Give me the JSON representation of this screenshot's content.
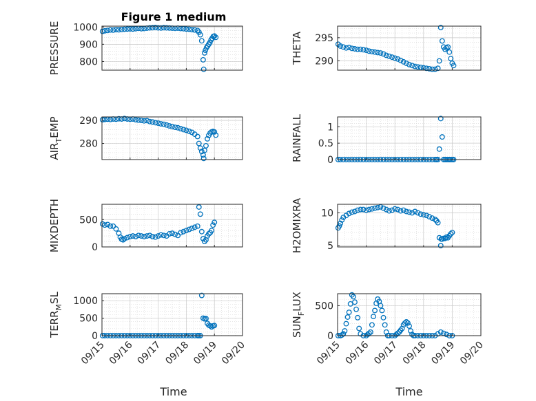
{
  "window": {
    "title": "Figure 1 medium"
  },
  "chart_data": [
    {
      "type": "scatter",
      "ylabel": "PRESSURE",
      "ylim": [
        750,
        1005
      ],
      "yticks": [
        800,
        900,
        1000
      ],
      "xlim": [
        0,
        5
      ],
      "xticks": [
        "09/15",
        "09/16",
        "09/17",
        "09/18",
        "09/19",
        "09/20"
      ],
      "series": [
        {
          "color": "#0072BD",
          "x": [
            0.02,
            0.1,
            0.2,
            0.3,
            0.4,
            0.5,
            0.6,
            0.7,
            0.8,
            0.9,
            1.0,
            1.1,
            1.2,
            1.3,
            1.4,
            1.5,
            1.6,
            1.7,
            1.8,
            1.9,
            2.0,
            2.1,
            2.2,
            2.3,
            2.4,
            2.5,
            2.6,
            2.7,
            2.8,
            2.9,
            3.0,
            3.1,
            3.2,
            3.3,
            3.4,
            3.45,
            3.5,
            3.55,
            3.6,
            3.62,
            3.65,
            3.68,
            3.72,
            3.76,
            3.8,
            3.84,
            3.88,
            3.92,
            3.96,
            4.0,
            4.05
          ],
          "y": [
            975,
            978,
            980,
            983,
            982,
            985,
            984,
            986,
            987,
            988,
            989,
            988,
            990,
            992,
            990,
            991,
            993,
            995,
            996,
            997,
            995,
            994,
            996,
            995,
            994,
            993,
            992,
            993,
            991,
            990,
            988,
            987,
            985,
            983,
            980,
            970,
            955,
            920,
            810,
            755,
            850,
            865,
            880,
            890,
            900,
            910,
            925,
            935,
            945,
            948,
            940
          ]
        }
      ],
      "grid": true
    },
    {
      "type": "scatter",
      "ylabel": "THETA",
      "ylim": [
        288,
        297.5
      ],
      "yticks": [
        290,
        295
      ],
      "xlim": [
        0,
        5
      ],
      "xticks": [
        "09/15",
        "09/16",
        "09/17",
        "09/18",
        "09/19",
        "09/20"
      ],
      "series": [
        {
          "color": "#0072BD",
          "x": [
            0.02,
            0.1,
            0.2,
            0.3,
            0.4,
            0.5,
            0.6,
            0.7,
            0.8,
            0.9,
            1.0,
            1.1,
            1.2,
            1.3,
            1.4,
            1.5,
            1.6,
            1.7,
            1.8,
            1.9,
            2.0,
            2.1,
            2.2,
            2.3,
            2.4,
            2.5,
            2.6,
            2.7,
            2.8,
            2.9,
            3.0,
            3.1,
            3.2,
            3.3,
            3.4,
            3.5,
            3.55,
            3.6,
            3.65,
            3.7,
            3.75,
            3.8,
            3.85,
            3.9,
            3.95,
            4.0,
            4.05
          ],
          "y": [
            293.6,
            293.2,
            293.0,
            292.8,
            292.9,
            292.7,
            292.6,
            292.5,
            292.5,
            292.4,
            292.3,
            292.1,
            292.0,
            291.9,
            291.8,
            291.7,
            291.5,
            291.2,
            291.0,
            290.8,
            290.6,
            290.4,
            290.1,
            289.8,
            289.5,
            289.2,
            289.0,
            288.8,
            288.7,
            288.6,
            288.5,
            288.4,
            288.3,
            288.2,
            288.2,
            288.4,
            290.0,
            297.2,
            294.3,
            293.0,
            292.5,
            292.8,
            293.0,
            291.9,
            290.5,
            289.5,
            289.0
          ]
        }
      ],
      "grid": true
    },
    {
      "type": "scatter",
      "ylabel": "AIR_TEMP",
      "ylim": [
        273,
        291.5
      ],
      "yticks": [
        280,
        290
      ],
      "xlim": [
        0,
        5
      ],
      "xticks": [
        "09/15",
        "09/16",
        "09/17",
        "09/18",
        "09/19",
        "09/20"
      ],
      "series": [
        {
          "color": "#0072BD",
          "x": [
            0.02,
            0.1,
            0.2,
            0.3,
            0.4,
            0.5,
            0.6,
            0.7,
            0.8,
            0.9,
            1.0,
            1.1,
            1.2,
            1.3,
            1.4,
            1.5,
            1.6,
            1.7,
            1.8,
            1.9,
            2.0,
            2.1,
            2.2,
            2.3,
            2.4,
            2.5,
            2.6,
            2.7,
            2.8,
            2.9,
            3.0,
            3.1,
            3.2,
            3.3,
            3.4,
            3.45,
            3.5,
            3.55,
            3.6,
            3.62,
            3.65,
            3.7,
            3.75,
            3.8,
            3.85,
            3.9,
            3.95,
            4.0,
            4.05
          ],
          "y": [
            290.3,
            290.4,
            290.5,
            290.4,
            290.6,
            290.5,
            290.7,
            290.6,
            290.8,
            290.6,
            290.5,
            290.6,
            290.3,
            290.1,
            290.0,
            289.8,
            289.9,
            289.5,
            289.3,
            289.0,
            288.8,
            288.5,
            288.3,
            288.0,
            287.6,
            287.3,
            287.0,
            286.8,
            286.4,
            286.0,
            285.7,
            285.3,
            284.8,
            284.0,
            283.0,
            280.0,
            278.0,
            276.5,
            275.0,
            273.5,
            277.0,
            279.0,
            282.0,
            283.5,
            284.5,
            285.0,
            285.2,
            285.0,
            283.6
          ]
        }
      ],
      "grid": true
    },
    {
      "type": "scatter",
      "ylabel": "RAINFALL",
      "ylim": [
        0,
        1.3
      ],
      "yticks": [
        0,
        0.5,
        1
      ],
      "xlim": [
        0,
        5
      ],
      "xticks": [
        "09/15",
        "09/16",
        "09/17",
        "09/18",
        "09/19",
        "09/20"
      ],
      "series": [
        {
          "color": "#0072BD",
          "x": [
            0.02,
            0.1,
            0.2,
            0.3,
            0.4,
            0.5,
            0.6,
            0.7,
            0.8,
            0.9,
            1.0,
            1.1,
            1.2,
            1.3,
            1.4,
            1.5,
            1.6,
            1.7,
            1.8,
            1.9,
            2.0,
            2.1,
            2.2,
            2.3,
            2.4,
            2.5,
            2.6,
            2.7,
            2.8,
            2.9,
            3.0,
            3.1,
            3.2,
            3.3,
            3.4,
            3.45,
            3.5,
            3.55,
            3.6,
            3.65,
            3.7,
            3.75,
            3.8,
            3.85,
            3.9,
            3.95,
            4.0,
            4.05
          ],
          "y": [
            0,
            0,
            0,
            0,
            0,
            0,
            0,
            0,
            0,
            0,
            0,
            0,
            0,
            0,
            0,
            0,
            0,
            0,
            0,
            0,
            0,
            0,
            0,
            0,
            0,
            0,
            0,
            0,
            0,
            0,
            0,
            0,
            0,
            0,
            0,
            0,
            0,
            0.32,
            1.25,
            0.69,
            0,
            0,
            0,
            0,
            0,
            0,
            0,
            0
          ]
        }
      ],
      "grid": true
    },
    {
      "type": "scatter",
      "ylabel": "MIXDEPTH",
      "ylim": [
        0,
        780
      ],
      "yticks": [
        0,
        500
      ],
      "xlim": [
        0,
        5
      ],
      "xticks": [
        "09/15",
        "09/16",
        "09/17",
        "09/18",
        "09/19",
        "09/20"
      ],
      "series": [
        {
          "color": "#0072BD",
          "x": [
            0.02,
            0.1,
            0.2,
            0.3,
            0.4,
            0.5,
            0.6,
            0.65,
            0.7,
            0.75,
            0.8,
            0.9,
            1.0,
            1.1,
            1.2,
            1.3,
            1.4,
            1.5,
            1.6,
            1.7,
            1.8,
            1.9,
            2.0,
            2.1,
            2.2,
            2.3,
            2.4,
            2.5,
            2.6,
            2.7,
            2.8,
            2.9,
            3.0,
            3.1,
            3.2,
            3.3,
            3.4,
            3.45,
            3.5,
            3.55,
            3.6,
            3.65,
            3.7,
            3.75,
            3.8,
            3.85,
            3.9,
            3.95,
            4.0
          ],
          "y": [
            420,
            400,
            410,
            380,
            380,
            330,
            250,
            180,
            140,
            130,
            150,
            170,
            190,
            200,
            190,
            210,
            200,
            190,
            200,
            210,
            190,
            180,
            200,
            220,
            210,
            200,
            240,
            250,
            230,
            210,
            260,
            280,
            300,
            320,
            340,
            360,
            380,
            730,
            600,
            280,
            150,
            100,
            130,
            200,
            240,
            260,
            300,
            400,
            450
          ]
        }
      ],
      "grid": true
    },
    {
      "type": "scatter",
      "ylabel": "H2OMIXRA",
      "ylim": [
        4.8,
        11.3
      ],
      "yticks": [
        5,
        10
      ],
      "xlim": [
        0,
        5
      ],
      "xticks": [
        "09/15",
        "09/16",
        "09/17",
        "09/18",
        "09/19",
        "09/20"
      ],
      "series": [
        {
          "color": "#0072BD",
          "x": [
            0.02,
            0.06,
            0.1,
            0.15,
            0.2,
            0.3,
            0.4,
            0.5,
            0.6,
            0.7,
            0.8,
            0.9,
            1.0,
            1.1,
            1.2,
            1.3,
            1.4,
            1.5,
            1.6,
            1.7,
            1.8,
            1.9,
            2.0,
            2.1,
            2.2,
            2.3,
            2.4,
            2.5,
            2.6,
            2.7,
            2.8,
            2.9,
            3.0,
            3.1,
            3.2,
            3.3,
            3.4,
            3.45,
            3.5,
            3.55,
            3.6,
            3.62,
            3.65,
            3.7,
            3.75,
            3.8,
            3.85,
            3.9,
            3.95,
            4.0
          ],
          "y": [
            7.7,
            8.0,
            8.4,
            8.9,
            9.3,
            9.6,
            9.9,
            10.1,
            10.2,
            10.4,
            10.5,
            10.5,
            10.4,
            10.5,
            10.6,
            10.7,
            10.8,
            10.9,
            10.7,
            10.5,
            10.3,
            10.4,
            10.6,
            10.5,
            10.3,
            10.4,
            10.2,
            10.1,
            10.0,
            10.2,
            10.0,
            9.8,
            9.7,
            9.6,
            9.4,
            9.2,
            9.0,
            8.8,
            8.5,
            6.2,
            5.0,
            6.0,
            6.0,
            6.1,
            6.1,
            6.3,
            6.2,
            6.5,
            6.8,
            7.0
          ]
        }
      ],
      "grid": true
    },
    {
      "type": "scatter",
      "ylabel": "TERR_MSL",
      "ylim": [
        0,
        1200
      ],
      "yticks": [
        0,
        500,
        1000
      ],
      "xlim": [
        0,
        5
      ],
      "xticks": [
        "09/15",
        "09/16",
        "09/17",
        "09/18",
        "09/19",
        "09/20"
      ],
      "series": [
        {
          "color": "#0072BD",
          "x": [
            0.02,
            0.1,
            0.2,
            0.3,
            0.4,
            0.5,
            0.6,
            0.7,
            0.8,
            0.9,
            1.0,
            1.1,
            1.2,
            1.3,
            1.4,
            1.5,
            1.6,
            1.7,
            1.8,
            1.9,
            2.0,
            2.1,
            2.2,
            2.3,
            2.4,
            2.5,
            2.6,
            2.7,
            2.8,
            2.9,
            3.0,
            3.1,
            3.2,
            3.3,
            3.4,
            3.45,
            3.5,
            3.55,
            3.6,
            3.65,
            3.7,
            3.75,
            3.8,
            3.85,
            3.9,
            3.95,
            4.0
          ],
          "y": [
            0,
            0,
            0,
            0,
            0,
            0,
            0,
            0,
            0,
            0,
            0,
            0,
            0,
            0,
            0,
            0,
            0,
            0,
            0,
            0,
            0,
            0,
            0,
            0,
            0,
            0,
            0,
            0,
            0,
            0,
            0,
            0,
            0,
            0,
            0,
            0,
            0,
            1150,
            500,
            480,
            490,
            350,
            300,
            280,
            250,
            280,
            290
          ]
        }
      ],
      "grid": true
    },
    {
      "type": "scatter",
      "ylabel": "SUN_FLUX",
      "ylim": [
        0,
        700
      ],
      "yticks": [
        0,
        500
      ],
      "xlim": [
        0,
        5
      ],
      "xticks": [
        "09/15",
        "09/16",
        "09/17",
        "09/18",
        "09/19",
        "09/20"
      ],
      "series": [
        {
          "color": "#0072BD",
          "x": [
            0.02,
            0.1,
            0.15,
            0.2,
            0.25,
            0.3,
            0.35,
            0.4,
            0.45,
            0.5,
            0.55,
            0.6,
            0.65,
            0.7,
            0.75,
            0.8,
            0.9,
            1.0,
            1.05,
            1.1,
            1.15,
            1.2,
            1.25,
            1.3,
            1.35,
            1.4,
            1.45,
            1.5,
            1.55,
            1.6,
            1.65,
            1.7,
            1.75,
            1.8,
            1.9,
            2.0,
            2.05,
            2.1,
            2.15,
            2.2,
            2.25,
            2.3,
            2.35,
            2.4,
            2.45,
            2.5,
            2.55,
            2.6,
            2.65,
            2.7,
            2.8,
            2.9,
            3.0,
            3.1,
            3.2,
            3.3,
            3.4,
            3.5,
            3.6,
            3.7,
            3.8,
            3.9,
            4.0
          ],
          "y": [
            0,
            0,
            10,
            30,
            80,
            200,
            310,
            390,
            530,
            680,
            650,
            560,
            440,
            300,
            120,
            30,
            0,
            0,
            20,
            40,
            60,
            180,
            320,
            420,
            540,
            610,
            570,
            500,
            420,
            300,
            180,
            60,
            0,
            0,
            0,
            0,
            20,
            40,
            60,
            90,
            120,
            180,
            210,
            230,
            210,
            160,
            80,
            20,
            0,
            0,
            0,
            0,
            0,
            0,
            0,
            0,
            0,
            30,
            60,
            40,
            20,
            0,
            0
          ]
        }
      ],
      "grid": true
    }
  ],
  "labels": {
    "xlabel_left": "Time",
    "xlabel_right": "Time"
  }
}
